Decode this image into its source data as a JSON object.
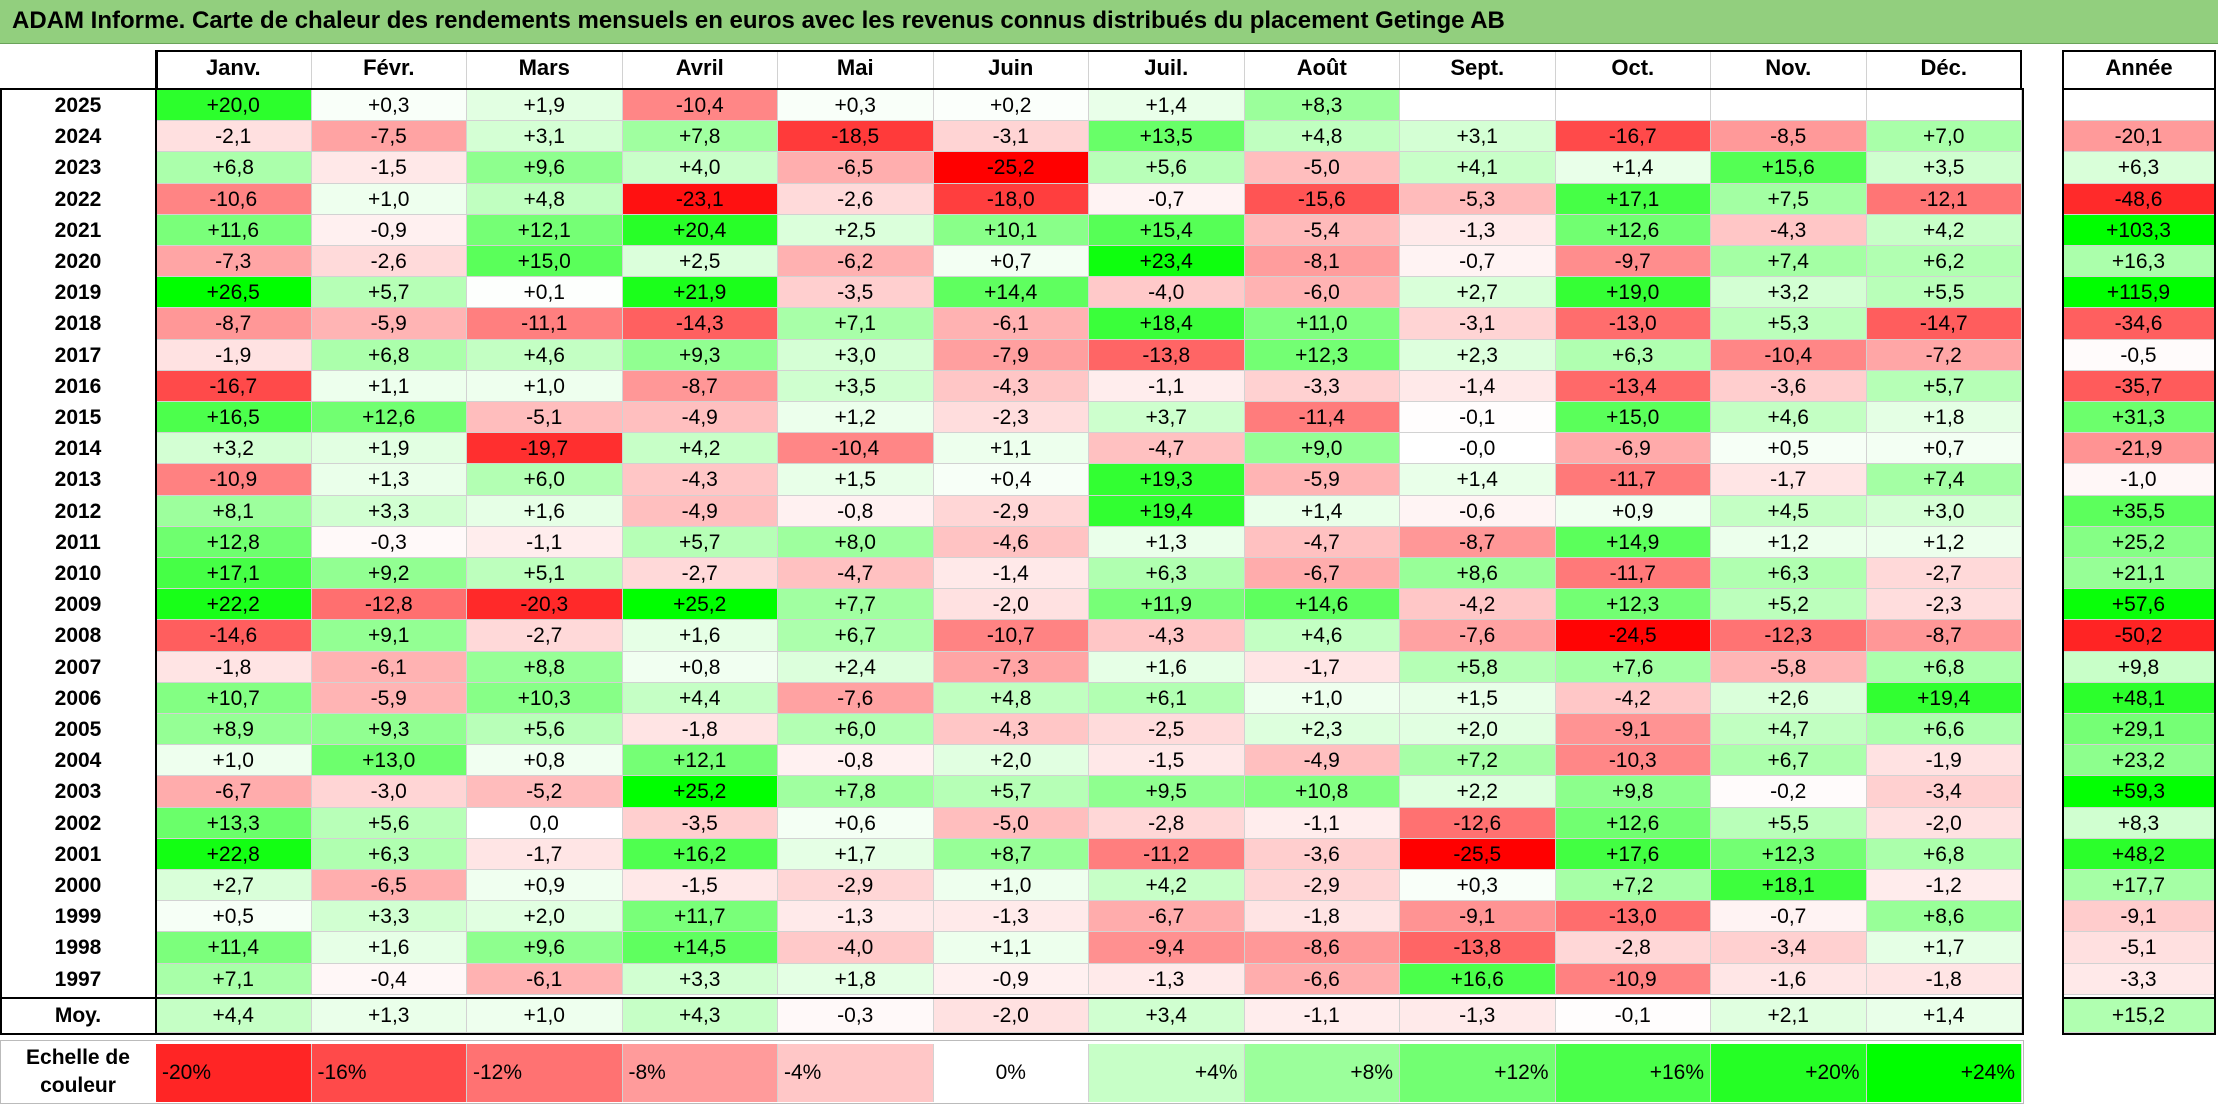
{
  "title": "ADAM Informe. Carte de chaleur des rendements mensuels en euros avec les revenus connus distribués du placement Getinge AB",
  "chart_data": {
    "type": "heatmap",
    "months": [
      "Janv.",
      "Févr.",
      "Mars",
      "Avril",
      "Mai",
      "Juin",
      "Juil.",
      "Août",
      "Sept.",
      "Oct.",
      "Nov.",
      "Déc."
    ],
    "year_header": "Année",
    "average_label": "Moy.",
    "rows": [
      {
        "year": "2025",
        "values": [
          "+20,0",
          "+0,3",
          "+1,9",
          "-10,4",
          "+0,3",
          "+0,2",
          "+1,4",
          "+8,3",
          "",
          "",
          "",
          ""
        ],
        "annual": ""
      },
      {
        "year": "2024",
        "values": [
          "-2,1",
          "-7,5",
          "+3,1",
          "+7,8",
          "-18,5",
          "-3,1",
          "+13,5",
          "+4,8",
          "+3,1",
          "-16,7",
          "-8,5",
          "+7,0"
        ],
        "annual": "-20,1"
      },
      {
        "year": "2023",
        "values": [
          "+6,8",
          "-1,5",
          "+9,6",
          "+4,0",
          "-6,5",
          "-25,2",
          "+5,6",
          "-5,0",
          "+4,1",
          "+1,4",
          "+15,6",
          "+3,5"
        ],
        "annual": "+6,3"
      },
      {
        "year": "2022",
        "values": [
          "-10,6",
          "+1,0",
          "+4,8",
          "-23,1",
          "-2,6",
          "-18,0",
          "-0,7",
          "-15,6",
          "-5,3",
          "+17,1",
          "+7,5",
          "-12,1"
        ],
        "annual": "-48,6"
      },
      {
        "year": "2021",
        "values": [
          "+11,6",
          "-0,9",
          "+12,1",
          "+20,4",
          "+2,5",
          "+10,1",
          "+15,4",
          "-5,4",
          "-1,3",
          "+12,6",
          "-4,3",
          "+4,2"
        ],
        "annual": "+103,3"
      },
      {
        "year": "2020",
        "values": [
          "-7,3",
          "-2,6",
          "+15,0",
          "+2,5",
          "-6,2",
          "+0,7",
          "+23,4",
          "-8,1",
          "-0,7",
          "-9,7",
          "+7,4",
          "+6,2"
        ],
        "annual": "+16,3"
      },
      {
        "year": "2019",
        "values": [
          "+26,5",
          "+5,7",
          "+0,1",
          "+21,9",
          "-3,5",
          "+14,4",
          "-4,0",
          "-6,0",
          "+2,7",
          "+19,0",
          "+3,2",
          "+5,5"
        ],
        "annual": "+115,9"
      },
      {
        "year": "2018",
        "values": [
          "-8,7",
          "-5,9",
          "-11,1",
          "-14,3",
          "+7,1",
          "-6,1",
          "+18,4",
          "+11,0",
          "-3,1",
          "-13,0",
          "+5,3",
          "-14,7"
        ],
        "annual": "-34,6"
      },
      {
        "year": "2017",
        "values": [
          "-1,9",
          "+6,8",
          "+4,6",
          "+9,3",
          "+3,0",
          "-7,9",
          "-13,8",
          "+12,3",
          "+2,3",
          "+6,3",
          "-10,4",
          "-7,2"
        ],
        "annual": "-0,5"
      },
      {
        "year": "2016",
        "values": [
          "-16,7",
          "+1,1",
          "+1,0",
          "-8,7",
          "+3,5",
          "-4,3",
          "-1,1",
          "-3,3",
          "-1,4",
          "-13,4",
          "-3,6",
          "+5,7"
        ],
        "annual": "-35,7"
      },
      {
        "year": "2015",
        "values": [
          "+16,5",
          "+12,6",
          "-5,1",
          "-4,9",
          "+1,2",
          "-2,3",
          "+3,7",
          "-11,4",
          "-0,1",
          "+15,0",
          "+4,6",
          "+1,8"
        ],
        "annual": "+31,3"
      },
      {
        "year": "2014",
        "values": [
          "+3,2",
          "+1,9",
          "-19,7",
          "+4,2",
          "-10,4",
          "+1,1",
          "-4,7",
          "+9,0",
          "-0,0",
          "-6,9",
          "+0,5",
          "+0,7"
        ],
        "annual": "-21,9"
      },
      {
        "year": "2013",
        "values": [
          "-10,9",
          "+1,3",
          "+6,0",
          "-4,3",
          "+1,5",
          "+0,4",
          "+19,3",
          "-5,9",
          "+1,4",
          "-11,7",
          "-1,7",
          "+7,4"
        ],
        "annual": "-1,0"
      },
      {
        "year": "2012",
        "values": [
          "+8,1",
          "+3,3",
          "+1,6",
          "-4,9",
          "-0,8",
          "-2,9",
          "+19,4",
          "+1,4",
          "-0,6",
          "+0,9",
          "+4,5",
          "+3,0"
        ],
        "annual": "+35,5"
      },
      {
        "year": "2011",
        "values": [
          "+12,8",
          "-0,3",
          "-1,1",
          "+5,7",
          "+8,0",
          "-4,6",
          "+1,3",
          "-4,7",
          "-8,7",
          "+14,9",
          "+1,2",
          "+1,2"
        ],
        "annual": "+25,2"
      },
      {
        "year": "2010",
        "values": [
          "+17,1",
          "+9,2",
          "+5,1",
          "-2,7",
          "-4,7",
          "-1,4",
          "+6,3",
          "-6,7",
          "+8,6",
          "-11,7",
          "+6,3",
          "-2,7"
        ],
        "annual": "+21,1"
      },
      {
        "year": "2009",
        "values": [
          "+22,2",
          "-12,8",
          "-20,3",
          "+25,2",
          "+7,7",
          "-2,0",
          "+11,9",
          "+14,6",
          "-4,2",
          "+12,3",
          "+5,2",
          "-2,3"
        ],
        "annual": "+57,6"
      },
      {
        "year": "2008",
        "values": [
          "-14,6",
          "+9,1",
          "-2,7",
          "+1,6",
          "+6,7",
          "-10,7",
          "-4,3",
          "+4,6",
          "-7,6",
          "-24,5",
          "-12,3",
          "-8,7"
        ],
        "annual": "-50,2"
      },
      {
        "year": "2007",
        "values": [
          "-1,8",
          "-6,1",
          "+8,8",
          "+0,8",
          "+2,4",
          "-7,3",
          "+1,6",
          "-1,7",
          "+5,8",
          "+7,6",
          "-5,8",
          "+6,8"
        ],
        "annual": "+9,8"
      },
      {
        "year": "2006",
        "values": [
          "+10,7",
          "-5,9",
          "+10,3",
          "+4,4",
          "-7,6",
          "+4,8",
          "+6,1",
          "+1,0",
          "+1,5",
          "-4,2",
          "+2,6",
          "+19,4"
        ],
        "annual": "+48,1"
      },
      {
        "year": "2005",
        "values": [
          "+8,9",
          "+9,3",
          "+5,6",
          "-1,8",
          "+6,0",
          "-4,3",
          "-2,5",
          "+2,3",
          "+2,0",
          "-9,1",
          "+4,7",
          "+6,6"
        ],
        "annual": "+29,1"
      },
      {
        "year": "2004",
        "values": [
          "+1,0",
          "+13,0",
          "+0,8",
          "+12,1",
          "-0,8",
          "+2,0",
          "-1,5",
          "-4,9",
          "+7,2",
          "-10,3",
          "+6,7",
          "-1,9"
        ],
        "annual": "+23,2"
      },
      {
        "year": "2003",
        "values": [
          "-6,7",
          "-3,0",
          "-5,2",
          "+25,2",
          "+7,8",
          "+5,7",
          "+9,5",
          "+10,8",
          "+2,2",
          "+9,8",
          "-0,2",
          "-3,4"
        ],
        "annual": "+59,3"
      },
      {
        "year": "2002",
        "values": [
          "+13,3",
          "+5,6",
          "0,0",
          "-3,5",
          "+0,6",
          "-5,0",
          "-2,8",
          "-1,1",
          "-12,6",
          "+12,6",
          "+5,5",
          "-2,0"
        ],
        "annual": "+8,3"
      },
      {
        "year": "2001",
        "values": [
          "+22,8",
          "+6,3",
          "-1,7",
          "+16,2",
          "+1,7",
          "+8,7",
          "-11,2",
          "-3,6",
          "-25,5",
          "+17,6",
          "+12,3",
          "+6,8"
        ],
        "annual": "+48,2"
      },
      {
        "year": "2000",
        "values": [
          "+2,7",
          "-6,5",
          "+0,9",
          "-1,5",
          "-2,9",
          "+1,0",
          "+4,2",
          "-2,9",
          "+0,3",
          "+7,2",
          "+18,1",
          "-1,2"
        ],
        "annual": "+17,7"
      },
      {
        "year": "1999",
        "values": [
          "+0,5",
          "+3,3",
          "+2,0",
          "+11,7",
          "-1,3",
          "-1,3",
          "-6,7",
          "-1,8",
          "-9,1",
          "-13,0",
          "-0,7",
          "+8,6"
        ],
        "annual": "-9,1"
      },
      {
        "year": "1998",
        "values": [
          "+11,4",
          "+1,6",
          "+9,6",
          "+14,5",
          "-4,0",
          "+1,1",
          "-9,4",
          "-8,6",
          "-13,8",
          "-2,8",
          "-3,4",
          "+1,7"
        ],
        "annual": "-5,1"
      },
      {
        "year": "1997",
        "values": [
          "+7,1",
          "-0,4",
          "-6,1",
          "+3,3",
          "+1,8",
          "-0,9",
          "-1,3",
          "-6,6",
          "+16,6",
          "-10,9",
          "-1,6",
          "-1,8"
        ],
        "annual": "-3,3"
      }
    ],
    "averages": [
      "+4,4",
      "+1,3",
      "+1,0",
      "+4,3",
      "-0,3",
      "-2,0",
      "+3,4",
      "-1,1",
      "-1,3",
      "-0,1",
      "+2,1",
      "+1,4"
    ],
    "average_annual": "+15,2",
    "scale_label": "Echelle de couleur",
    "scale": [
      "-20%",
      "-16%",
      "-12%",
      "-8%",
      "-4%",
      "0%",
      "+4%",
      "+8%",
      "+12%",
      "+16%",
      "+20%",
      "+24%"
    ],
    "colors": {
      "negative_max": "#ff0000",
      "neutral": "#ffffff",
      "positive_max": "#00ff00"
    }
  }
}
